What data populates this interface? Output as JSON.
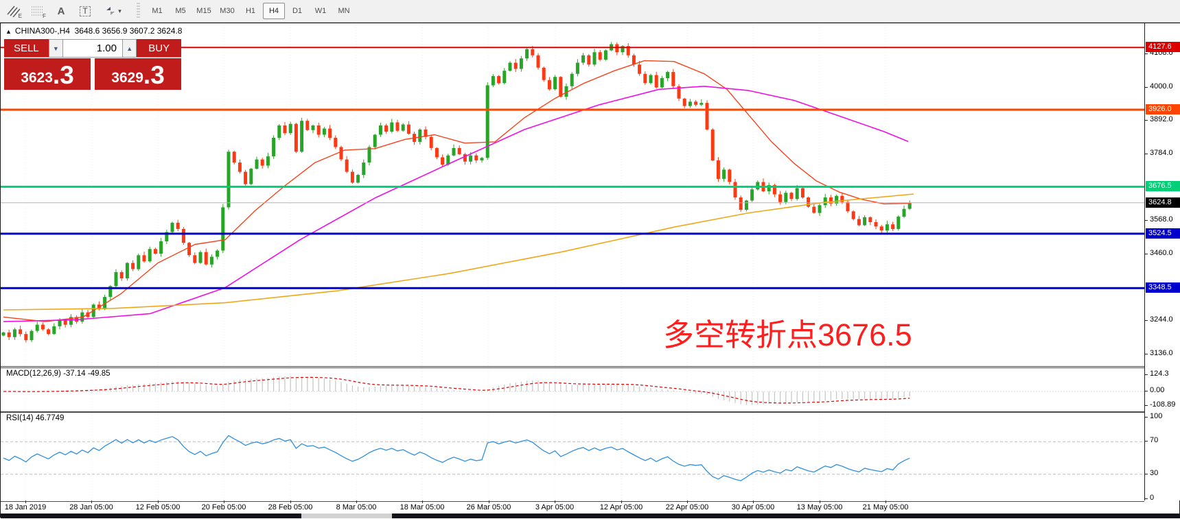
{
  "toolbar": {
    "tools": [
      {
        "id": "equidistant-channel",
        "label": "E"
      },
      {
        "id": "fibo-grid",
        "label": "F"
      },
      {
        "id": "label-tool",
        "label": "A"
      },
      {
        "id": "text-tool",
        "label": "T"
      },
      {
        "id": "arrows-tool",
        "label": "▾"
      }
    ],
    "timeframes": [
      "M1",
      "M5",
      "M15",
      "M30",
      "H1",
      "H4",
      "D1",
      "W1",
      "MN"
    ],
    "active_timeframe": "H4"
  },
  "chart": {
    "collapse_icon": "▲",
    "title_symbol": "CHINA300-,H4",
    "title_ohlc": "3648.6 3656.9 3607.2 3624.8",
    "annotation": {
      "text": "多空转折点3676.5",
      "color": "#ff1e1e"
    }
  },
  "trade_panel": {
    "sell_label": "SELL",
    "buy_label": "BUY",
    "volume": "1.00",
    "spin_down": "▼",
    "spin_up": "▲",
    "sell_price_main": "3623",
    "sell_price_pip": ".3",
    "buy_price_main": "3629",
    "buy_price_pip": ".3"
  },
  "macd_panel": {
    "label": "MACD(12,26,9) -37.14 -49.85"
  },
  "rsi_panel": {
    "label": "RSI(14) 46.7749"
  },
  "chart_data": {
    "type": "candlestick",
    "symbol": "CHINA300-",
    "timeframe": "H4",
    "ohlc_display": {
      "open": 3648.6,
      "high": 3656.9,
      "low": 3607.2,
      "close": 3624.8
    },
    "colors": {
      "up": "#28a428",
      "down": "#fb3a14"
    },
    "closes": [
      3205,
      3190,
      3215,
      3200,
      3180,
      3210,
      3230,
      3215,
      3200,
      3225,
      3245,
      3230,
      3255,
      3240,
      3270,
      3255,
      3295,
      3280,
      3320,
      3355,
      3400,
      3380,
      3430,
      3410,
      3455,
      3435,
      3475,
      3460,
      3500,
      3530,
      3560,
      3540,
      3495,
      3455,
      3430,
      3465,
      3425,
      3450,
      3470,
      3610,
      3790,
      3755,
      3725,
      3685,
      3735,
      3765,
      3745,
      3775,
      3835,
      3875,
      3850,
      3880,
      3790,
      3890,
      3860,
      3875,
      3845,
      3865,
      3835,
      3805,
      3765,
      3725,
      3690,
      3715,
      3755,
      3805,
      3845,
      3875,
      3855,
      3885,
      3858,
      3878,
      3848,
      3822,
      3862,
      3838,
      3802,
      3772,
      3748,
      3778,
      3802,
      3782,
      3758,
      3778,
      3762,
      3770,
      4005,
      4035,
      4012,
      4052,
      4078,
      4058,
      4092,
      4122,
      4102,
      4062,
      4022,
      3992,
      4032,
      3968,
      4002,
      4042,
      4078,
      4102,
      4072,
      4112,
      4088,
      4118,
      4138,
      4112,
      4132,
      4102,
      4072,
      4042,
      4012,
      4038,
      3998,
      4028,
      4048,
      4002,
      3962,
      3938,
      3952,
      3942,
      3948,
      3862,
      3762,
      3702,
      3732,
      3692,
      3642,
      3602,
      3632,
      3668,
      3692,
      3662,
      3682,
      3652,
      3627,
      3657,
      3637,
      3672,
      3642,
      3612,
      3592,
      3617,
      3642,
      3622,
      3647,
      3627,
      3597,
      3572,
      3552,
      3578,
      3562,
      3548,
      3535,
      3555,
      3540,
      3580,
      3605,
      3625
    ],
    "hlines": [
      {
        "price": 4127.6,
        "label": "4127.6",
        "color": "#dd0000",
        "width": 2,
        "badge_bg": "#dd0000"
      },
      {
        "price": 3926.0,
        "label": "3926.0",
        "color": "#ff4500",
        "width": 3,
        "badge_bg": "#ff4500"
      },
      {
        "price": 3676.5,
        "label": "3676.5",
        "color": "#00cf77",
        "width": 3,
        "badge_bg": "#00cf77"
      },
      {
        "price": 3624.8,
        "label": "3624.8",
        "color": "#b4b4b4",
        "width": 1,
        "badge_bg": "#000000"
      },
      {
        "price": 3524.5,
        "label": "3524.5",
        "color": "#0000cc",
        "width": 3,
        "badge_bg": "#0000cc"
      },
      {
        "price": 3348.5,
        "label": "3348.5",
        "color": "#0000cc",
        "width": 3,
        "badge_bg": "#0000cc"
      }
    ],
    "ma_lines": [
      {
        "name": "fast-ma",
        "color": "#f5431b",
        "width": 1.4,
        "points": [
          [
            4,
            3255
          ],
          [
            65,
            3240
          ],
          [
            120,
            3255
          ],
          [
            175,
            3330
          ],
          [
            229,
            3430
          ],
          [
            283,
            3490
          ],
          [
            327,
            3505
          ],
          [
            371,
            3600
          ],
          [
            414,
            3680
          ],
          [
            458,
            3755
          ],
          [
            501,
            3795
          ],
          [
            545,
            3800
          ],
          [
            589,
            3830
          ],
          [
            632,
            3845
          ],
          [
            676,
            3818
          ],
          [
            720,
            3822
          ],
          [
            763,
            3900
          ],
          [
            807,
            3962
          ],
          [
            850,
            4012
          ],
          [
            894,
            4052
          ],
          [
            938,
            4085
          ],
          [
            981,
            4082
          ],
          [
            1025,
            4042
          ],
          [
            1058,
            3992
          ],
          [
            1090,
            3908
          ],
          [
            1123,
            3822
          ],
          [
            1156,
            3752
          ],
          [
            1188,
            3696
          ],
          [
            1221,
            3660
          ],
          [
            1254,
            3636
          ],
          [
            1287,
            3621
          ],
          [
            1326,
            3623
          ]
        ]
      },
      {
        "name": "mid-ma",
        "color": "#ef0fe4",
        "width": 1.6,
        "points": [
          [
            4,
            3240
          ],
          [
            109,
            3246
          ],
          [
            218,
            3266
          ],
          [
            327,
            3350
          ],
          [
            436,
            3505
          ],
          [
            545,
            3640
          ],
          [
            654,
            3752
          ],
          [
            763,
            3862
          ],
          [
            872,
            3942
          ],
          [
            959,
            3992
          ],
          [
            1025,
            4002
          ],
          [
            1090,
            3988
          ],
          [
            1156,
            3956
          ],
          [
            1221,
            3906
          ],
          [
            1287,
            3855
          ],
          [
            1322,
            3823
          ]
        ]
      },
      {
        "name": "slow-ma",
        "color": "#f0a818",
        "width": 1.6,
        "points": [
          [
            4,
            3278
          ],
          [
            164,
            3283
          ],
          [
            327,
            3301
          ],
          [
            491,
            3340
          ],
          [
            654,
            3396
          ],
          [
            818,
            3466
          ],
          [
            981,
            3546
          ],
          [
            1090,
            3592
          ],
          [
            1199,
            3626
          ],
          [
            1330,
            3653
          ]
        ]
      }
    ],
    "price_axis": {
      "ticks": [
        4108,
        4000,
        3892,
        3784,
        3568,
        3460,
        3244,
        3136
      ],
      "current": 3624.8
    },
    "macd": {
      "fast": 12,
      "slow": 26,
      "signal": 9,
      "current": -37.14,
      "current_signal": -49.85,
      "axis_values": [
        124.3,
        0,
        -108.89
      ],
      "axis_labels": [
        "124.3",
        "0.00",
        "-108.89"
      ],
      "hist_color": "#c9c9c9",
      "signal_color": "#e00000"
    },
    "rsi": {
      "period": 14,
      "current": 46.7749,
      "levels": [
        70,
        30
      ],
      "axis_values": [
        100,
        70,
        30,
        0
      ],
      "axis_labels": [
        "100",
        "70",
        "30",
        "0"
      ],
      "line_color": "#2e8fdd"
    },
    "x_dates": [
      "18 Jan 2019",
      "28 Jan 05:00",
      "12 Feb 05:00",
      "20 Feb 05:00",
      "28 Feb 05:00",
      "8 Mar 05:00",
      "18 Mar 05:00",
      "26 Mar 05:00",
      "3 Apr 05:00",
      "12 Apr 05:00",
      "22 Apr 05:00",
      "30 Apr 05:00",
      "13 May 05:00",
      "21 May 05:00"
    ]
  }
}
